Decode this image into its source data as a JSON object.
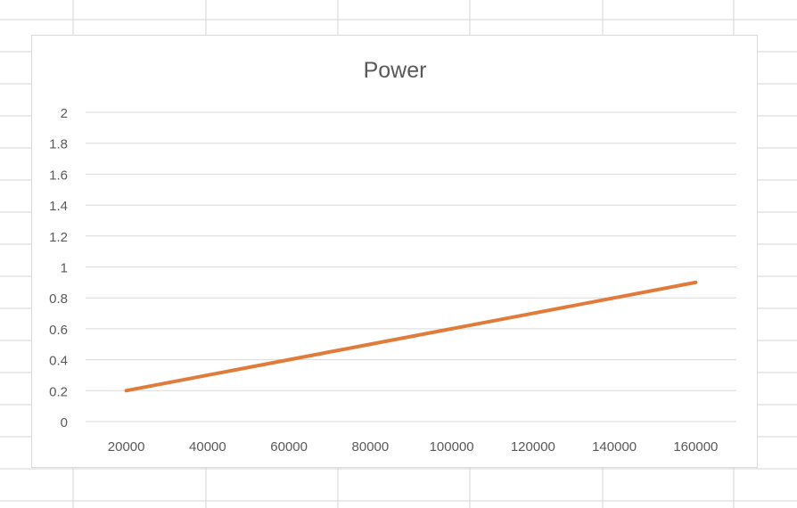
{
  "sheet": {
    "gridline_color": "#d4d4d4"
  },
  "chart_data": {
    "type": "line",
    "title": "Power",
    "xlabel": "",
    "ylabel": "",
    "x": [
      20000,
      40000,
      60000,
      80000,
      100000,
      120000,
      140000,
      160000
    ],
    "series": [
      {
        "values": [
          0.2,
          0.3,
          0.4,
          0.5,
          0.6,
          0.7,
          0.8,
          0.9
        ],
        "color": "#e07b39"
      }
    ],
    "x_tick_labels": [
      "20000",
      "40000",
      "60000",
      "80000",
      "100000",
      "120000",
      "140000",
      "160000"
    ],
    "y_ticks": [
      0,
      0.2,
      0.4,
      0.6,
      0.8,
      1,
      1.2,
      1.4,
      1.6,
      1.8,
      2
    ],
    "y_tick_labels": [
      "0",
      "0.2",
      "0.4",
      "0.6",
      "0.8",
      "1",
      "1.2",
      "1.4",
      "1.6",
      "1.8",
      "2"
    ],
    "ylim": [
      0,
      2
    ],
    "grid": true,
    "legend": "none"
  }
}
